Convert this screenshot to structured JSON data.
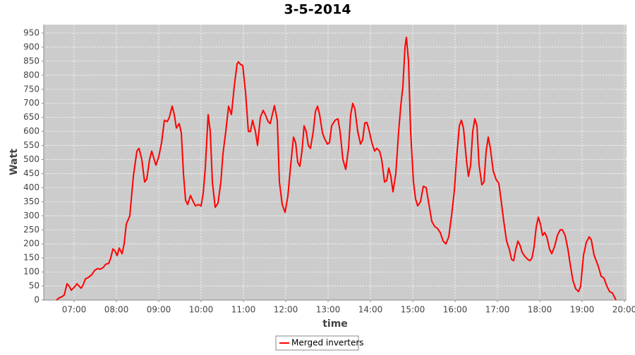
{
  "chart_data": {
    "type": "line",
    "title": "3-5-2014",
    "x_label": "time",
    "y_label": "Watt",
    "grid": true,
    "xlim": [
      "06:17",
      "20:03"
    ],
    "xticks": [
      "07:00",
      "08:00",
      "09:00",
      "10:00",
      "11:00",
      "12:00",
      "13:00",
      "14:00",
      "15:00",
      "16:00",
      "17:00",
      "18:00",
      "19:00",
      "20:00"
    ],
    "ylim": [
      0,
      980
    ],
    "yticks": [
      0,
      50,
      100,
      150,
      200,
      250,
      300,
      350,
      400,
      450,
      500,
      550,
      600,
      650,
      700,
      750,
      800,
      850,
      900,
      950
    ],
    "x": [
      "06:35",
      "06:39",
      "06:43",
      "06:46",
      "06:50",
      "06:53",
      "06:56",
      "07:00",
      "07:04",
      "07:07",
      "07:10",
      "07:13",
      "07:16",
      "07:20",
      "07:25",
      "07:29",
      "07:33",
      "07:37",
      "07:41",
      "07:45",
      "07:49",
      "07:52",
      "07:55",
      "07:58",
      "08:01",
      "08:04",
      "08:08",
      "08:11",
      "08:14",
      "08:19",
      "08:24",
      "08:29",
      "08:32",
      "08:36",
      "08:40",
      "08:43",
      "08:47",
      "08:50",
      "08:53",
      "08:56",
      "09:00",
      "09:04",
      "09:08",
      "09:12",
      "09:15",
      "09:19",
      "09:22",
      "09:25",
      "09:29",
      "09:32",
      "09:35",
      "09:38",
      "09:41",
      "09:45",
      "09:48",
      "09:52",
      "09:56",
      "10:00",
      "10:03",
      "10:06",
      "10:10",
      "10:13",
      "10:16",
      "10:20",
      "10:24",
      "10:28",
      "10:31",
      "10:35",
      "10:39",
      "10:43",
      "10:47",
      "10:51",
      "10:53",
      "10:56",
      "10:59",
      "11:03",
      "11:07",
      "11:10",
      "11:13",
      "11:17",
      "11:20",
      "11:24",
      "11:28",
      "11:31",
      "11:35",
      "11:38",
      "11:41",
      "11:44",
      "11:48",
      "11:51",
      "11:55",
      "11:59",
      "12:03",
      "12:07",
      "12:11",
      "12:14",
      "12:17",
      "12:20",
      "12:23",
      "12:26",
      "12:29",
      "12:32",
      "12:35",
      "12:39",
      "12:42",
      "12:45",
      "12:48",
      "12:52",
      "12:55",
      "12:59",
      "13:02",
      "13:05",
      "13:10",
      "13:14",
      "13:17",
      "13:21",
      "13:25",
      "13:29",
      "13:32",
      "13:35",
      "13:38",
      "13:42",
      "13:46",
      "13:49",
      "13:52",
      "13:55",
      "13:58",
      "14:02",
      "14:06",
      "14:09",
      "14:13",
      "14:16",
      "14:20",
      "14:23",
      "14:26",
      "14:29",
      "14:32",
      "14:36",
      "14:40",
      "14:43",
      "14:46",
      "14:49",
      "14:51",
      "14:54",
      "14:57",
      "15:01",
      "15:04",
      "15:07",
      "15:11",
      "15:15",
      "15:19",
      "15:23",
      "15:27",
      "15:31",
      "15:35",
      "15:39",
      "15:43",
      "15:47",
      "15:51",
      "15:55",
      "15:59",
      "16:02",
      "16:06",
      "16:09",
      "16:12",
      "16:16",
      "16:19",
      "16:22",
      "16:25",
      "16:28",
      "16:31",
      "16:34",
      "16:38",
      "16:41",
      "16:44",
      "16:47",
      "16:50",
      "16:54",
      "16:58",
      "17:02",
      "17:05",
      "17:09",
      "17:13",
      "17:17",
      "17:20",
      "17:23",
      "17:26",
      "17:29",
      "17:32",
      "17:35",
      "17:39",
      "17:43",
      "17:46",
      "17:49",
      "17:52",
      "17:55",
      "17:58",
      "18:01",
      "18:04",
      "18:07",
      "18:10",
      "18:14",
      "18:17",
      "18:21",
      "18:25",
      "18:29",
      "18:32",
      "18:36",
      "18:40",
      "18:43",
      "18:47",
      "18:51",
      "18:55",
      "18:58",
      "19:02",
      "19:06",
      "19:10",
      "19:13",
      "19:17",
      "19:20",
      "19:23",
      "19:27",
      "19:31",
      "19:35",
      "19:39",
      "19:43",
      "19:48"
    ],
    "series": [
      {
        "name": "Merged inverters",
        "color": "#ff0000",
        "values": [
          0,
          8,
          12,
          18,
          58,
          50,
          35,
          45,
          58,
          50,
          42,
          55,
          75,
          80,
          90,
          105,
          112,
          110,
          115,
          128,
          130,
          150,
          182,
          175,
          158,
          185,
          165,
          200,
          270,
          300,
          440,
          530,
          540,
          500,
          420,
          430,
          500,
          530,
          505,
          480,
          510,
          560,
          640,
          635,
          650,
          690,
          660,
          612,
          628,
          595,
          450,
          355,
          340,
          372,
          355,
          335,
          340,
          335,
          380,
          470,
          660,
          600,
          420,
          330,
          345,
          420,
          520,
          600,
          690,
          660,
          760,
          840,
          848,
          838,
          835,
          740,
          600,
          600,
          640,
          600,
          550,
          650,
          675,
          660,
          635,
          628,
          660,
          692,
          640,
          420,
          340,
          312,
          370,
          480,
          580,
          560,
          490,
          476,
          530,
          620,
          600,
          550,
          540,
          600,
          670,
          690,
          660,
          595,
          575,
          555,
          560,
          620,
          640,
          645,
          600,
          500,
          465,
          540,
          660,
          700,
          680,
          600,
          555,
          570,
          630,
          632,
          605,
          560,
          530,
          540,
          530,
          500,
          420,
          425,
          470,
          440,
          385,
          450,
          600,
          690,
          760,
          900,
          935,
          850,
          600,
          420,
          360,
          335,
          350,
          405,
          400,
          340,
          280,
          262,
          255,
          240,
          210,
          200,
          225,
          300,
          390,
          500,
          620,
          640,
          610,
          500,
          440,
          480,
          600,
          645,
          620,
          480,
          410,
          420,
          530,
          580,
          540,
          460,
          430,
          415,
          360,
          280,
          210,
          180,
          145,
          140,
          180,
          210,
          195,
          170,
          155,
          145,
          140,
          150,
          190,
          260,
          295,
          270,
          230,
          240,
          225,
          180,
          165,
          190,
          230,
          250,
          250,
          230,
          180,
          130,
          70,
          40,
          30,
          50,
          160,
          205,
          225,
          215,
          160,
          140,
          120,
          85,
          78,
          50,
          30,
          25,
          0
        ]
      }
    ]
  }
}
